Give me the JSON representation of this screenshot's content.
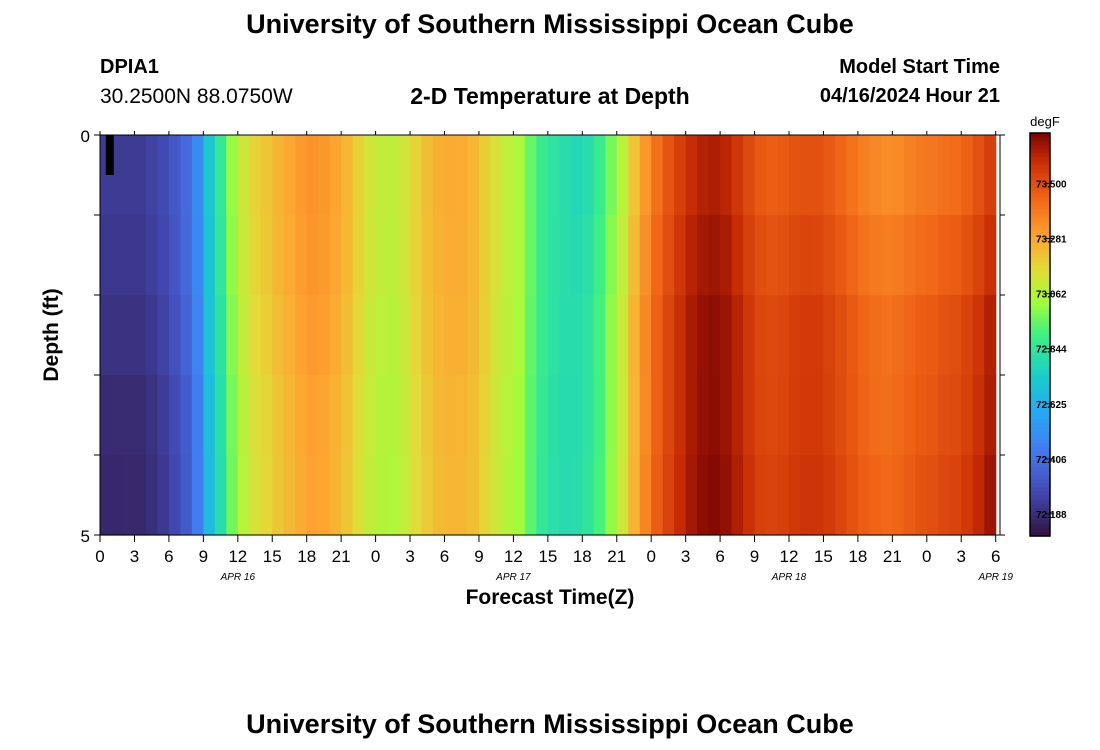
{
  "header": {
    "title": "University of Southern Mississippi Ocean Cube",
    "station_id": "DPIA1",
    "coords": "30.2500N  88.0750W",
    "chart_title": "2-D Temperature at Depth",
    "start_label": "Model Start Time",
    "start_time": "04/16/2024 Hour 21"
  },
  "footer": {
    "title": "University of Southern Mississippi Ocean Cube"
  },
  "chart_data": {
    "type": "heatmap",
    "title": "2-D Temperature at Depth",
    "xlabel": "Forecast Time(Z)",
    "ylabel": "Depth (ft)",
    "x_tick_labels": [
      "0",
      "3",
      "6",
      "9",
      "12",
      "15",
      "18",
      "21",
      "0",
      "3",
      "6",
      "9",
      "12",
      "15",
      "18",
      "21",
      "0",
      "3",
      "6",
      "9",
      "12",
      "15",
      "18",
      "21",
      "0",
      "3",
      "6"
    ],
    "date_labels": [
      {
        "label": "APR 16",
        "hour": 12
      },
      {
        "label": "APR 17",
        "hour": 36
      },
      {
        "label": "APR 18",
        "hour": 60
      },
      {
        "label": "APR 19",
        "hour": 78
      }
    ],
    "y_tick_labels": [
      "0",
      "5"
    ],
    "ylim": [
      0,
      5
    ],
    "x_hours_range": [
      0,
      78
    ],
    "hours": [
      0,
      1,
      2,
      3,
      4,
      5,
      6,
      7,
      8,
      9,
      10,
      11,
      12,
      13,
      14,
      15,
      16,
      17,
      18,
      19,
      20,
      21,
      22,
      23,
      24,
      25,
      26,
      27,
      28,
      29,
      30,
      31,
      32,
      33,
      34,
      35,
      36,
      37,
      38,
      39,
      40,
      41,
      42,
      43,
      44,
      45,
      46,
      47,
      48,
      49,
      50,
      51,
      52,
      53,
      54,
      55,
      56,
      57,
      58,
      59,
      60,
      61,
      62,
      63,
      64,
      65,
      66,
      67,
      68,
      69,
      70,
      71,
      72,
      73,
      74,
      75,
      76,
      77
    ],
    "depth_bands_ft": [
      0,
      1,
      2,
      3,
      4,
      5
    ],
    "base_profile_degF": [
      72.19,
      72.19,
      72.19,
      72.19,
      72.21,
      72.24,
      72.29,
      72.35,
      72.46,
      72.68,
      72.82,
      72.98,
      73.08,
      73.15,
      73.18,
      73.22,
      73.25,
      73.28,
      73.3,
      73.29,
      73.26,
      73.22,
      73.16,
      73.1,
      73.07,
      73.06,
      73.1,
      73.16,
      73.21,
      73.24,
      73.25,
      73.25,
      73.23,
      73.18,
      73.12,
      73.07,
      73.03,
      72.94,
      72.86,
      72.82,
      72.8,
      72.8,
      72.83,
      72.9,
      73.0,
      73.1,
      73.24,
      73.35,
      73.45,
      73.52,
      73.58,
      73.63,
      73.66,
      73.67,
      73.65,
      73.61,
      73.56,
      73.52,
      73.51,
      73.52,
      73.54,
      73.55,
      73.55,
      73.53,
      73.5,
      73.47,
      73.44,
      73.42,
      73.41,
      73.42,
      73.44,
      73.46,
      73.47,
      73.49,
      73.5,
      73.53,
      73.57,
      73.62
    ],
    "depth_offsets_degF": [
      [
        0.04,
        -0.08
      ],
      [
        0.03,
        -0.04
      ],
      [
        0.01,
        0.0
      ],
      [
        -0.01,
        0.01
      ],
      [
        -0.02,
        0.03
      ],
      [
        -0.04,
        0.06
      ]
    ],
    "colorbar": {
      "unit": "degF",
      "labels": [
        "73.500",
        "73.281",
        "73.062",
        "72.844",
        "72.625",
        "72.406",
        "72.188"
      ],
      "range": [
        72.1,
        73.7
      ]
    },
    "grid": false
  }
}
